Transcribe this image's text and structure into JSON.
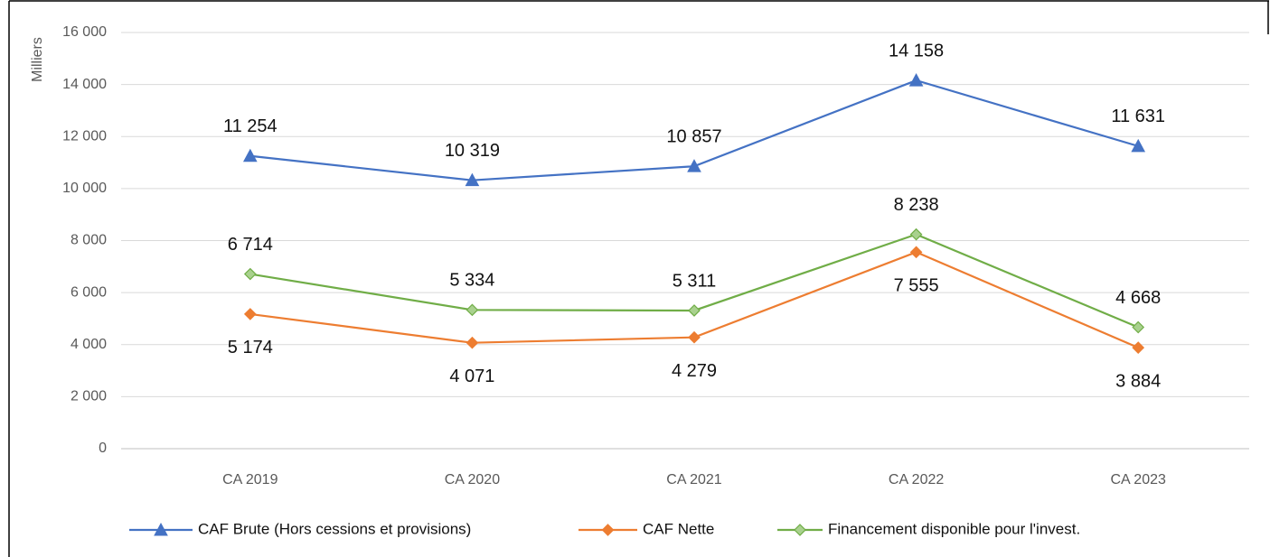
{
  "chart_data": {
    "type": "line",
    "y_label": "Milliers",
    "categories": [
      "CA 2019",
      "CA 2020",
      "CA 2021",
      "CA 2022",
      "CA 2023"
    ],
    "series": [
      {
        "name": "CAF Brute (Hors cessions et provisions)",
        "color": "#4472c4",
        "marker": "triangle",
        "values": [
          11254,
          10319,
          10857,
          14158,
          11631
        ],
        "value_labels": [
          "11 254",
          "10 319",
          "10 857",
          "14 158",
          "11 631"
        ]
      },
      {
        "name": "CAF Nette",
        "color": "#ed7d31",
        "marker": "diamond",
        "values": [
          5174,
          4071,
          4279,
          7555,
          3884
        ],
        "value_labels": [
          "5 174",
          "4 071",
          "4 279",
          "7 555",
          "3 884"
        ]
      },
      {
        "name": "Financement disponible pour l'invest.",
        "color": "#70ad47",
        "marker": "diamond",
        "values": [
          6714,
          5334,
          5311,
          8238,
          4668
        ],
        "value_labels": [
          "6 714",
          "5 334",
          "5 311",
          "8 238",
          "4 668"
        ]
      }
    ],
    "ylim": [
      0,
      16000
    ],
    "yticks": [
      0,
      {
        "value": 2000,
        "label": "2 000"
      },
      {
        "value": 4000,
        "label": "4 000"
      },
      {
        "value": 6000,
        "label": "6 000"
      },
      {
        "value": 8000,
        "label": "8 000"
      },
      {
        "value": 10000,
        "label": "10 000"
      },
      {
        "value": 12000,
        "label": "12 000"
      },
      {
        "value": 14000,
        "label": "14 000"
      },
      {
        "value": 16000,
        "label": "16 000"
      }
    ],
    "grid": true,
    "legend": "bottom"
  }
}
